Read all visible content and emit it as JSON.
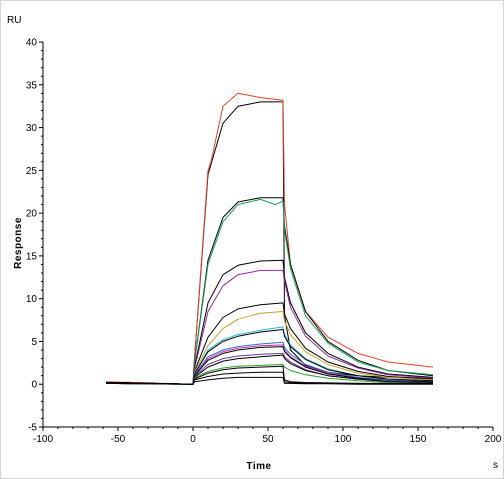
{
  "chart_data": {
    "type": "line",
    "title": "",
    "xlabel": "Time",
    "ylabel": "Response",
    "x_unit": "s",
    "y_unit": "RU",
    "xlim": [
      -100,
      200
    ],
    "ylim": [
      -5,
      40
    ],
    "x_ticks": [
      -100,
      -50,
      0,
      50,
      100,
      150,
      200
    ],
    "y_ticks": [
      -5,
      0,
      5,
      10,
      15,
      20,
      25,
      30,
      35,
      40
    ],
    "grid": false,
    "legend": "none",
    "series": [
      {
        "color": "#000000",
        "x": [
          -58,
          0,
          1,
          10,
          20,
          30,
          45,
          60,
          61,
          65,
          75,
          90,
          110,
          130,
          160
        ],
        "y": [
          0.2,
          0.0,
          3.0,
          24.5,
          30.5,
          32.5,
          33.0,
          33.0,
          8.0,
          4.0,
          2.2,
          1.4,
          1.0,
          0.8,
          0.7
        ]
      },
      {
        "color": "#e8402c",
        "x": [
          -58,
          0,
          1,
          10,
          12,
          20,
          30,
          45,
          60,
          61,
          65,
          75,
          90,
          110,
          130,
          160
        ],
        "y": [
          0.3,
          0.0,
          3.0,
          25.0,
          26.0,
          32.5,
          34.0,
          33.5,
          33.2,
          21.0,
          14.0,
          8.5,
          5.5,
          3.6,
          2.6,
          2.0
        ]
      },
      {
        "color": "#000000",
        "x": [
          -58,
          0,
          1,
          10,
          20,
          30,
          45,
          60,
          61,
          65,
          75,
          90,
          110,
          130,
          160
        ],
        "y": [
          0.2,
          0.0,
          2.5,
          14.5,
          19.5,
          21.3,
          21.8,
          21.8,
          18.5,
          14.0,
          8.5,
          5.0,
          2.8,
          1.6,
          1.0
        ]
      },
      {
        "color": "#1aa05a",
        "x": [
          -58,
          0,
          1,
          10,
          20,
          30,
          45,
          55,
          60,
          61,
          65,
          75,
          90,
          110,
          130,
          160
        ],
        "y": [
          0.1,
          0.0,
          2.5,
          14.0,
          19.0,
          21.0,
          21.6,
          21.0,
          21.4,
          18.0,
          13.5,
          8.0,
          4.8,
          2.6,
          1.6,
          1.1
        ]
      },
      {
        "color": "#000000",
        "x": [
          -58,
          0,
          1,
          10,
          20,
          30,
          45,
          60,
          61,
          65,
          75,
          90,
          110,
          130,
          160
        ],
        "y": [
          0.2,
          0.0,
          2.0,
          9.5,
          12.8,
          13.9,
          14.4,
          14.5,
          12.5,
          9.5,
          6.0,
          3.6,
          2.0,
          1.2,
          0.8
        ]
      },
      {
        "color": "#8e2ba8",
        "x": [
          -58,
          0,
          1,
          10,
          20,
          30,
          45,
          60,
          61,
          65,
          75,
          90,
          110,
          130,
          160
        ],
        "y": [
          0.1,
          0.0,
          1.8,
          8.5,
          11.5,
          12.8,
          13.3,
          13.3,
          12.0,
          9.0,
          5.6,
          3.3,
          1.9,
          1.1,
          0.7
        ]
      },
      {
        "color": "#000000",
        "x": [
          -58,
          0,
          1,
          10,
          20,
          30,
          45,
          60,
          61,
          65,
          75,
          90,
          110,
          130,
          160
        ],
        "y": [
          0.2,
          0.0,
          1.5,
          5.5,
          7.8,
          8.8,
          9.3,
          9.5,
          8.2,
          6.5,
          4.2,
          2.6,
          1.5,
          0.9,
          0.6
        ]
      },
      {
        "color": "#c9a227",
        "x": [
          -58,
          0,
          1,
          10,
          20,
          30,
          45,
          60,
          61,
          65,
          75,
          90,
          110,
          130,
          160
        ],
        "y": [
          0.1,
          0.0,
          1.4,
          4.5,
          6.5,
          7.6,
          8.3,
          8.5,
          7.4,
          5.8,
          3.8,
          2.3,
          1.3,
          0.8,
          0.5
        ]
      },
      {
        "color": "#2bb7c9",
        "x": [
          -58,
          0,
          1,
          10,
          20,
          30,
          45,
          60,
          61,
          65,
          75,
          90,
          110,
          130,
          160
        ],
        "y": [
          0.1,
          0.0,
          1.2,
          4.0,
          5.2,
          5.8,
          6.3,
          6.7,
          5.8,
          4.6,
          3.0,
          1.8,
          1.0,
          0.6,
          0.4
        ]
      },
      {
        "color": "#000000",
        "x": [
          -58,
          0,
          1,
          10,
          20,
          30,
          45,
          60,
          61,
          65,
          75,
          90,
          110,
          130,
          160
        ],
        "y": [
          0.2,
          0.0,
          1.2,
          3.8,
          5.0,
          5.6,
          6.1,
          6.4,
          5.6,
          4.4,
          2.9,
          1.7,
          1.0,
          0.6,
          0.4
        ]
      },
      {
        "color": "#2f6fd0",
        "x": [
          -58,
          0,
          1,
          10,
          20,
          30,
          45,
          60,
          61,
          65,
          75,
          90,
          110,
          130,
          160
        ],
        "y": [
          0.1,
          0.0,
          1.1,
          3.2,
          4.0,
          4.4,
          4.7,
          4.9,
          4.3,
          3.5,
          2.3,
          1.4,
          0.8,
          0.5,
          0.3
        ]
      },
      {
        "color": "#d02fb0",
        "x": [
          -58,
          0,
          1,
          10,
          20,
          30,
          45,
          60,
          61,
          65,
          75,
          90,
          110,
          130,
          160
        ],
        "y": [
          0.1,
          0.0,
          1.0,
          3.0,
          3.8,
          4.2,
          4.5,
          4.6,
          4.0,
          3.2,
          2.1,
          1.3,
          0.7,
          0.4,
          0.3
        ]
      },
      {
        "color": "#000000",
        "x": [
          -58,
          0,
          1,
          10,
          20,
          30,
          45,
          60,
          61,
          65,
          75,
          90,
          110,
          130,
          160
        ],
        "y": [
          0.2,
          0.0,
          1.0,
          2.8,
          3.6,
          4.0,
          4.3,
          4.4,
          3.8,
          3.1,
          2.0,
          1.2,
          0.7,
          0.4,
          0.3
        ]
      },
      {
        "color": "#6a3d9a",
        "x": [
          -58,
          0,
          1,
          10,
          20,
          30,
          45,
          60,
          61,
          65,
          75,
          90,
          110,
          130,
          160
        ],
        "y": [
          0.1,
          0.0,
          0.9,
          2.3,
          3.0,
          3.3,
          3.5,
          3.6,
          3.2,
          2.6,
          1.7,
          1.0,
          0.6,
          0.4,
          0.2
        ]
      },
      {
        "color": "#000000",
        "x": [
          -58,
          0,
          1,
          10,
          20,
          30,
          45,
          60,
          61,
          65,
          75,
          90,
          110,
          130,
          160
        ],
        "y": [
          0.2,
          0.0,
          0.8,
          2.0,
          2.7,
          3.0,
          3.2,
          3.4,
          3.0,
          2.4,
          1.6,
          1.0,
          0.6,
          0.3,
          0.2
        ]
      },
      {
        "color": "#2ca02c",
        "x": [
          -58,
          0,
          1,
          10,
          20,
          30,
          45,
          60,
          61,
          65,
          75,
          90,
          110,
          130,
          160
        ],
        "y": [
          0.1,
          0.0,
          0.7,
          1.5,
          1.9,
          2.1,
          2.2,
          2.3,
          2.0,
          1.6,
          1.1,
          0.7,
          0.4,
          0.2,
          0.1
        ]
      },
      {
        "color": "#000000",
        "x": [
          -58,
          0,
          1,
          10,
          20,
          30,
          45,
          60,
          61,
          65,
          75,
          90,
          110,
          130,
          160
        ],
        "y": [
          0.2,
          0.0,
          0.6,
          1.3,
          1.7,
          1.9,
          2.0,
          2.1,
          0.5,
          0.3,
          0.2,
          0.15,
          0.1,
          0.1,
          0.1
        ]
      },
      {
        "color": "#000000",
        "x": [
          -58,
          0,
          1,
          10,
          20,
          30,
          45,
          60,
          61,
          65,
          75,
          90,
          110,
          130,
          160
        ],
        "y": [
          0.2,
          0.0,
          0.5,
          0.9,
          1.2,
          1.3,
          1.4,
          1.4,
          0.3,
          0.2,
          0.1,
          0.1,
          0.1,
          0.05,
          0.05
        ]
      },
      {
        "color": "#000000",
        "x": [
          -58,
          0,
          1,
          10,
          20,
          30,
          45,
          60,
          61,
          65,
          75,
          90,
          110,
          130,
          160
        ],
        "y": [
          0.1,
          0.0,
          0.3,
          0.5,
          0.7,
          0.8,
          0.8,
          0.8,
          0.1,
          0.1,
          0.05,
          0.05,
          0.0,
          0.0,
          0.0
        ]
      }
    ]
  }
}
